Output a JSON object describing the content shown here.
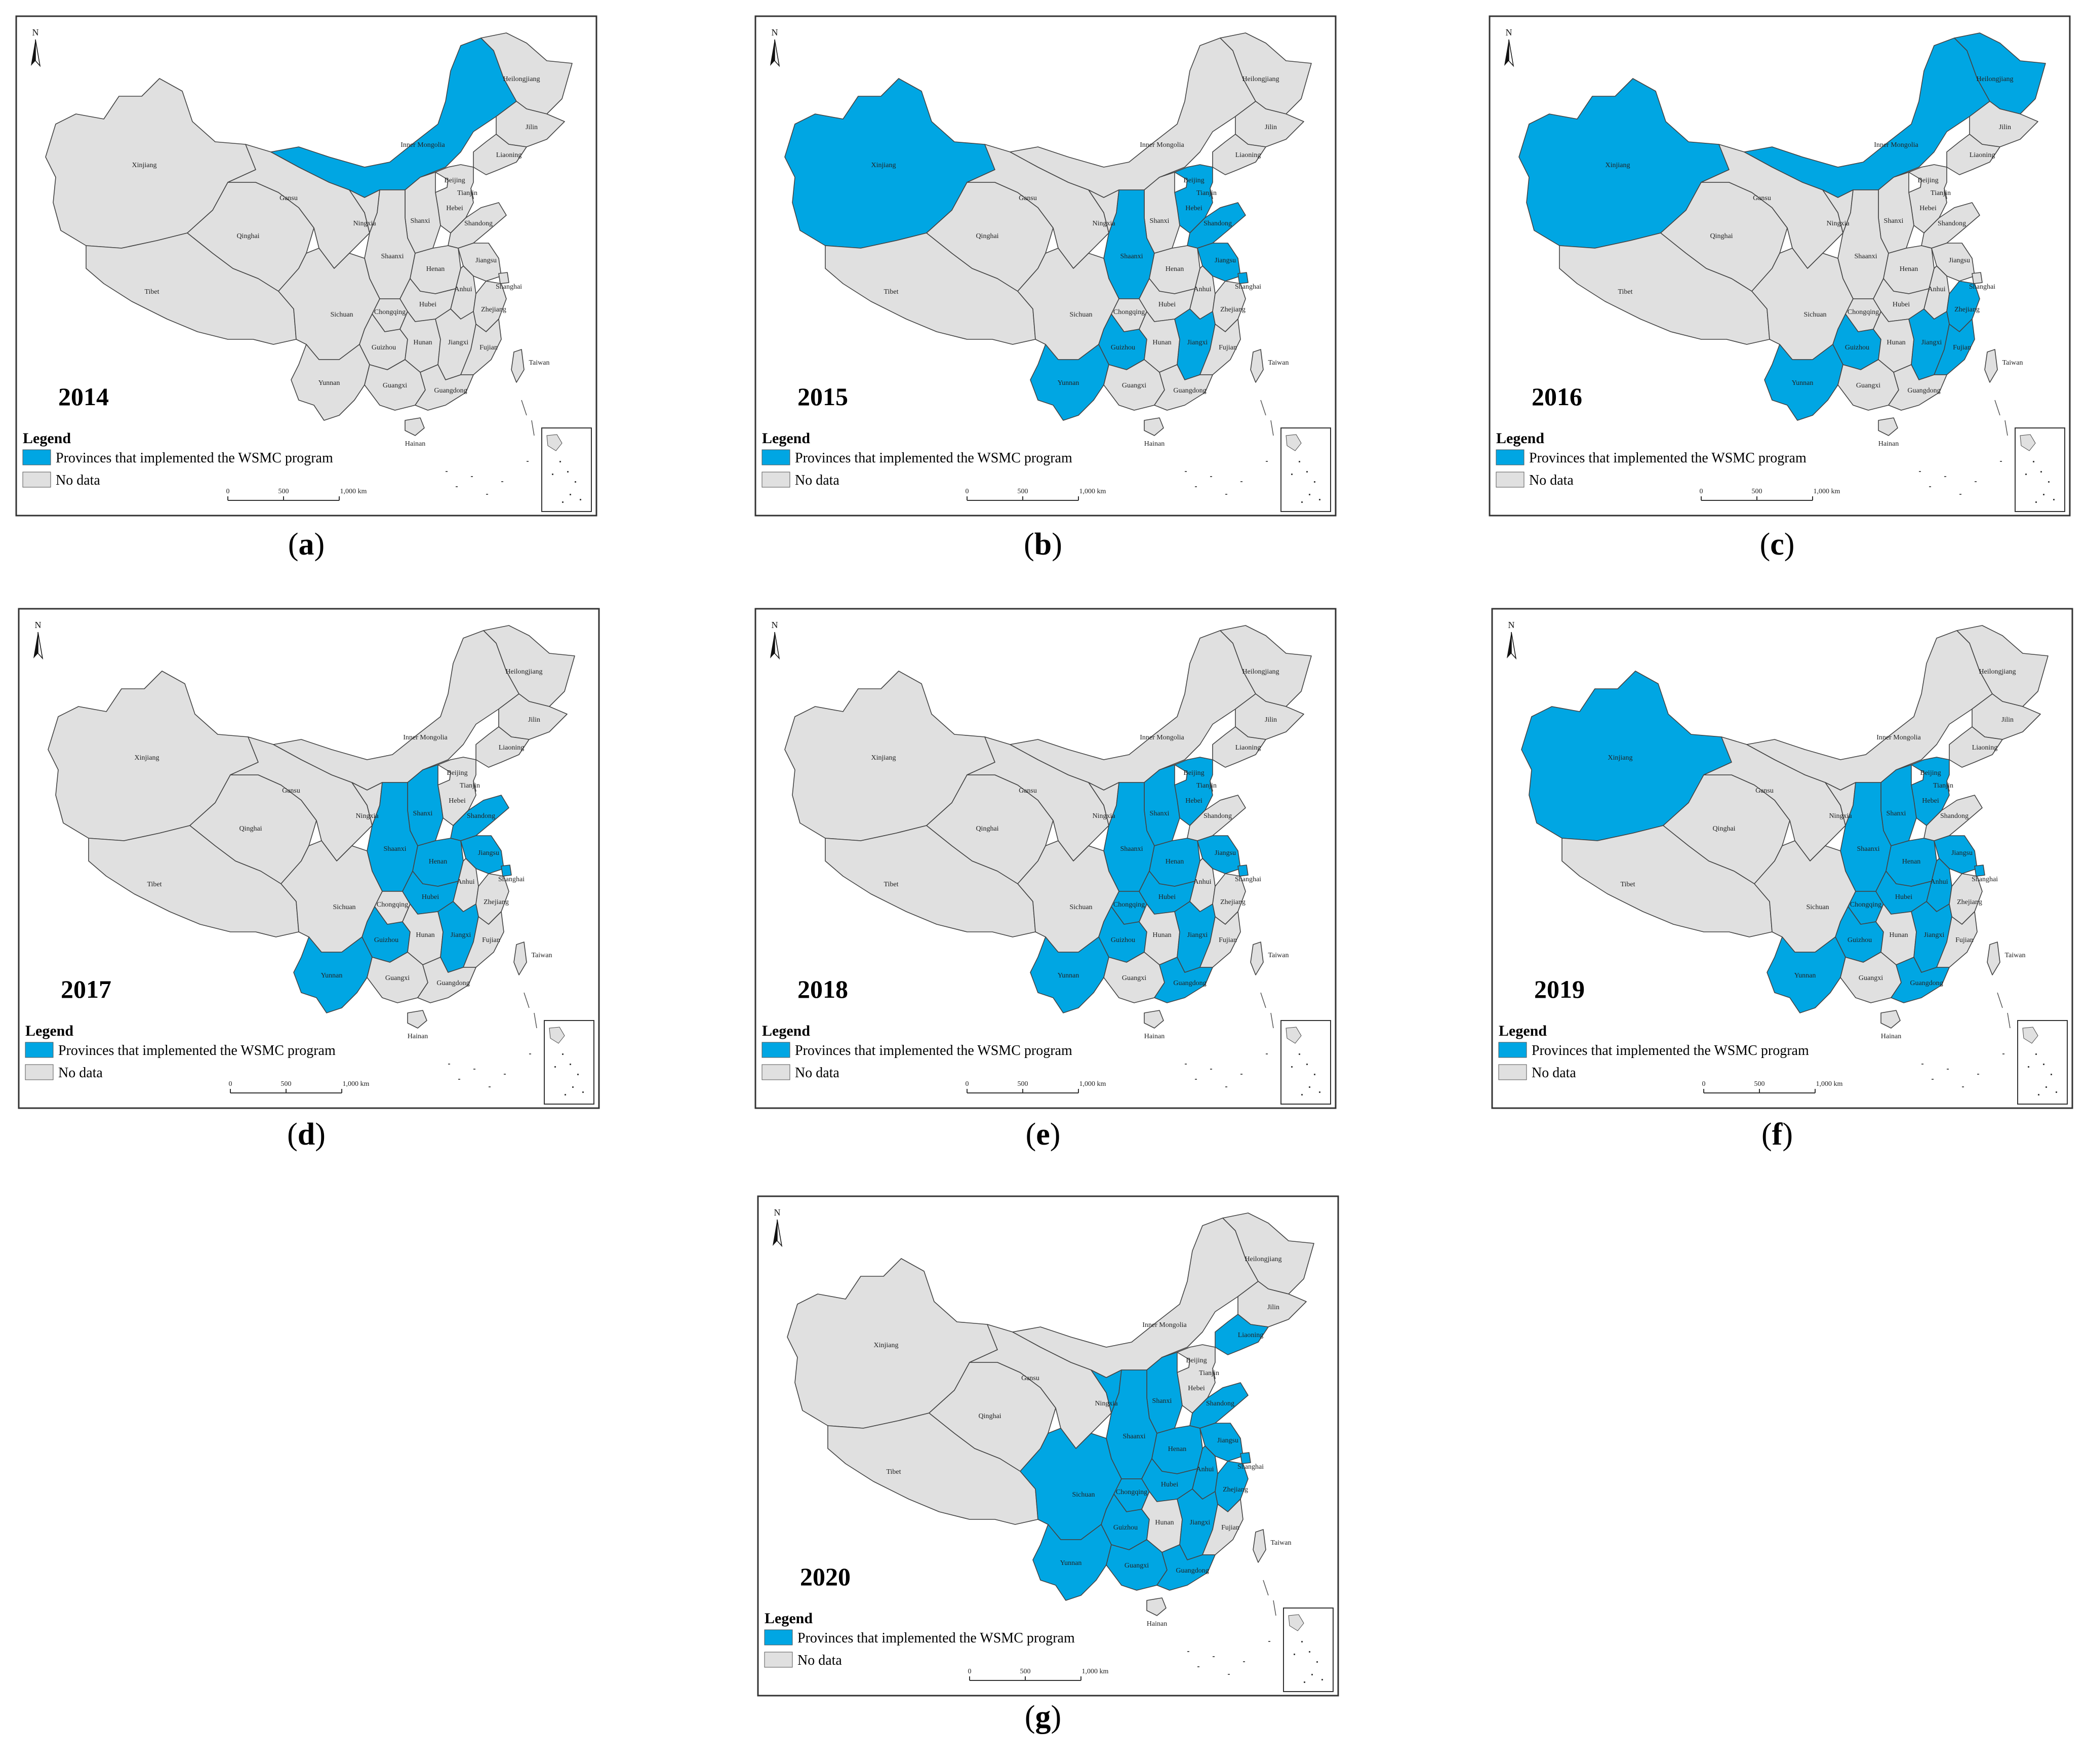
{
  "colors": {
    "implemented": "#00a6e3",
    "no_data": "#e0e0e0",
    "border": "#444444",
    "frame": "#333333"
  },
  "legend": {
    "title": "Legend",
    "implemented_label": "Provinces that implemented the WSMC program",
    "no_data_label": "No data"
  },
  "north_label": "N",
  "scale_bar": {
    "ticks": [
      "0",
      "500",
      "1,000 km"
    ]
  },
  "province_labels": {
    "xinjiang": "Xinjiang",
    "tibet": "Tibet",
    "qinghai": "Qinghai",
    "gansu": "Gansu",
    "inner_mongolia": "Inner Mongolia",
    "heilongjiang": "Heilongjiang",
    "jilin": "Jilin",
    "liaoning": "Liaoning",
    "beijing": "Beijing",
    "tianjin": "Tianjin",
    "hebei": "Hebei",
    "shanxi": "Shanxi",
    "shandong": "Shandong",
    "ningxia": "Ningxia",
    "shaanxi": "Shaanxi",
    "henan": "Henan",
    "jiangsu": "Jiangsu",
    "anhui": "Anhui",
    "shanghai": "Shanghai",
    "sichuan": "Sichuan",
    "chongqing": "Chongqing",
    "hubei": "Hubei",
    "zhejiang": "Zhejiang",
    "guizhou": "Guizhou",
    "hunan": "Hunan",
    "jiangxi": "Jiangxi",
    "fujian": "Fujian",
    "taiwan": "Taiwan",
    "yunnan": "Yunnan",
    "guangxi": "Guangxi",
    "guangdong": "Guangdong",
    "hainan": "Hainan"
  },
  "panels": [
    {
      "id": "a",
      "year": "2014",
      "caption_letter": "a",
      "implemented": [
        "inner_mongolia"
      ]
    },
    {
      "id": "b",
      "year": "2015",
      "caption_letter": "b",
      "implemented": [
        "xinjiang",
        "beijing",
        "tianjin",
        "hebei",
        "shandong",
        "shaanxi",
        "jiangsu",
        "shanghai",
        "jiangxi",
        "guizhou",
        "yunnan"
      ]
    },
    {
      "id": "c",
      "year": "2016",
      "caption_letter": "c",
      "implemented": [
        "xinjiang",
        "inner_mongolia",
        "heilongjiang",
        "zhejiang",
        "jiangxi",
        "fujian",
        "guizhou",
        "yunnan"
      ]
    },
    {
      "id": "d",
      "year": "2017",
      "caption_letter": "d",
      "implemented": [
        "shanxi",
        "shaanxi",
        "henan",
        "shandong",
        "jiangsu",
        "shanghai",
        "hubei",
        "jiangxi",
        "guizhou",
        "yunnan",
        "tianjin"
      ]
    },
    {
      "id": "e",
      "year": "2018",
      "caption_letter": "e",
      "implemented": [
        "beijing",
        "tianjin",
        "hebei",
        "shanxi",
        "shaanxi",
        "henan",
        "jiangsu",
        "shanghai",
        "hubei",
        "chongqing",
        "guizhou",
        "yunnan",
        "jiangxi",
        "guangdong"
      ]
    },
    {
      "id": "f",
      "year": "2019",
      "caption_letter": "f",
      "implemented": [
        "xinjiang",
        "beijing",
        "tianjin",
        "hebei",
        "shanxi",
        "shaanxi",
        "henan",
        "jiangsu",
        "shanghai",
        "hubei",
        "chongqing",
        "guizhou",
        "yunnan",
        "jiangxi",
        "guangdong",
        "anhui"
      ]
    },
    {
      "id": "g",
      "year": "2020",
      "caption_letter": "g",
      "implemented": [
        "liaoning",
        "shanxi",
        "ningxia",
        "shandong",
        "shaanxi",
        "henan",
        "jiangsu",
        "anhui",
        "shanghai",
        "sichuan",
        "chongqing",
        "hubei",
        "zhejiang",
        "guizhou",
        "jiangxi",
        "yunnan",
        "guangxi",
        "guangdong"
      ]
    }
  ]
}
